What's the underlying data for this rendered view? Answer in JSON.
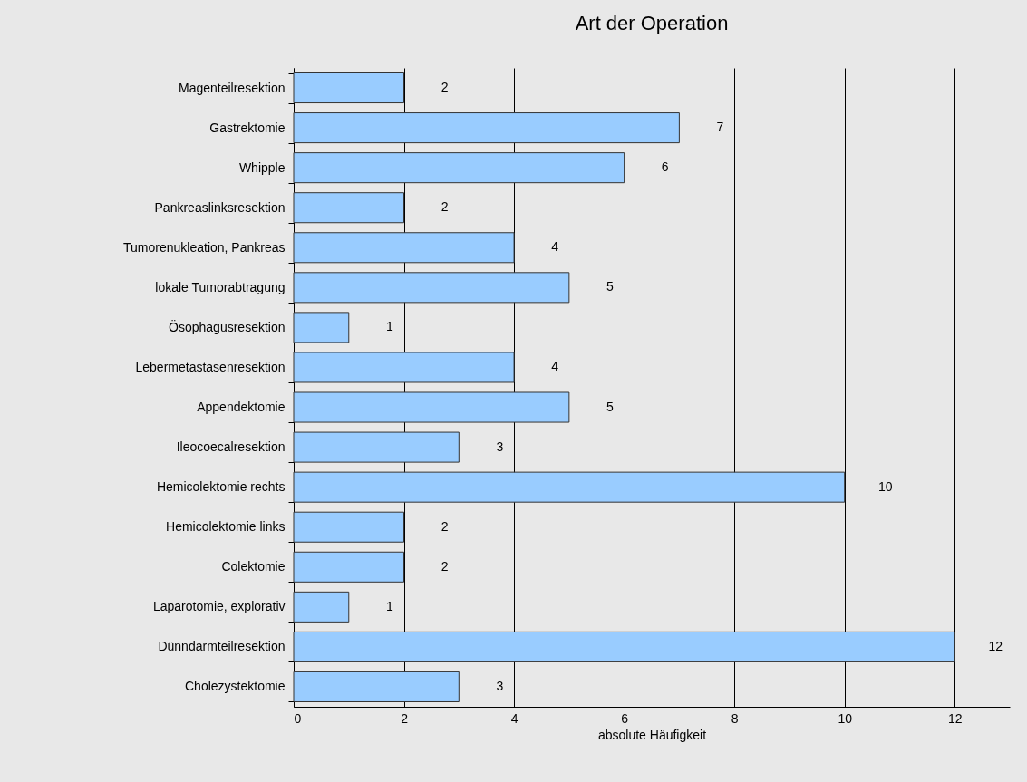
{
  "chart_data": {
    "type": "bar",
    "orientation": "horizontal",
    "title": "Art der Operation",
    "xlabel": "absolute Häufigkeit",
    "categories": [
      "Magenteilresektion",
      "Gastrektomie",
      "Whipple",
      "Pankreaslinksresektion",
      "Tumorenukleation, Pankreas",
      "lokale Tumorabtragung",
      "Ösophagusresektion",
      "Lebermetastasenresektion",
      "Appendektomie",
      "Ileocoecalresektion",
      "Hemicolektomie rechts",
      "Hemicolektomie links",
      "Colektomie",
      "Laparotomie, explorativ",
      "Dünndarmteilresektion",
      "Cholezystektomie"
    ],
    "values": [
      2,
      7,
      6,
      2,
      4,
      5,
      1,
      4,
      5,
      3,
      10,
      2,
      2,
      1,
      12,
      3
    ],
    "color": "#99ccff",
    "xlim": [
      0,
      13
    ],
    "xticks": [
      0,
      2,
      4,
      6,
      8,
      10,
      12
    ],
    "grid": "x",
    "data_labels": true
  }
}
